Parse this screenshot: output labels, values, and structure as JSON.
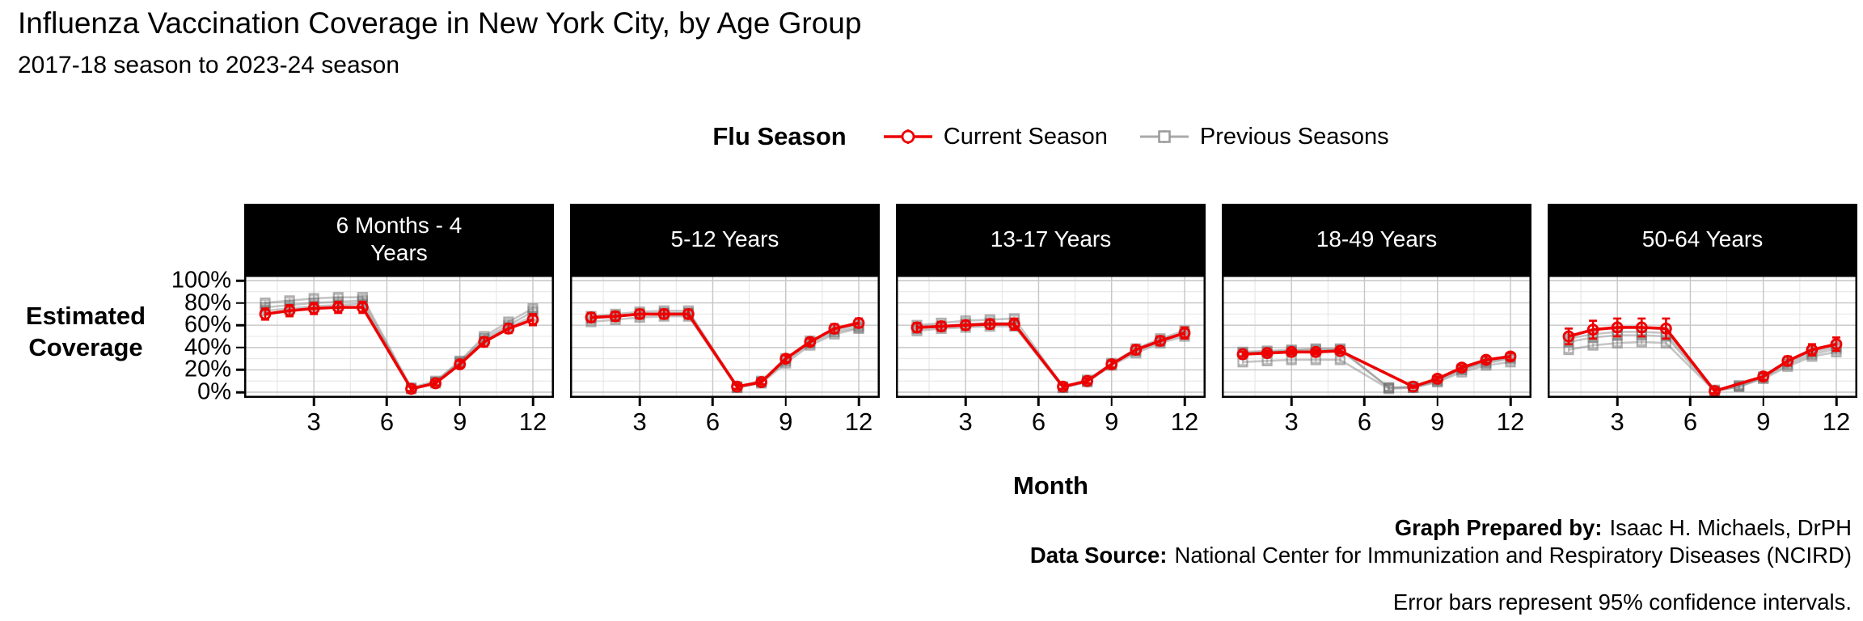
{
  "header": {
    "title": "Influenza Vaccination Coverage in New York City, by Age Group",
    "subtitle": "2017-18 season to 2023-24 season"
  },
  "legend": {
    "title": "Flu Season",
    "items": [
      {
        "label": "Current Season",
        "marker": "circle",
        "color": "#ee0000"
      },
      {
        "label": "Previous Seasons",
        "marker": "square",
        "color": "#8c8c8c"
      }
    ]
  },
  "axes": {
    "y_label": "Estimated\nCoverage",
    "x_label": "Month",
    "y_ticks": [
      {
        "value": 100,
        "label": "100%"
      },
      {
        "value": 80,
        "label": "80%"
      },
      {
        "value": 60,
        "label": "60%"
      },
      {
        "value": 40,
        "label": "40%"
      },
      {
        "value": 20,
        "label": "20%"
      },
      {
        "value": 0,
        "label": "0%"
      }
    ],
    "x_ticks": [
      {
        "value": 3,
        "label": "3"
      },
      {
        "value": 6,
        "label": "6"
      },
      {
        "value": 9,
        "label": "9"
      },
      {
        "value": 12,
        "label": "12"
      }
    ]
  },
  "footer": {
    "prepared_by_label": "Graph Prepared by:",
    "prepared_by": "Isaac H. Michaels, DrPH",
    "source_label": "Data Source:",
    "source": "National Center for Immunization and Respiratory Diseases (NCIRD)",
    "note": "Error bars represent 95% confidence intervals."
  },
  "chart_data": {
    "type": "line",
    "title": "Influenza Vaccination Coverage in New York City, by Age Group",
    "subtitle": "2017-18 season to 2023-24 season",
    "xlabel": "Month",
    "ylabel": "Estimated Coverage",
    "x": [
      1,
      2,
      3,
      4,
      5,
      6,
      7,
      8,
      9,
      10,
      11,
      12
    ],
    "ylim": [
      0,
      100
    ],
    "y_unit": "%",
    "grid": {
      "y_major": [
        0,
        20,
        40,
        60,
        80,
        100
      ],
      "y_minor": [
        10,
        30,
        50,
        70,
        90
      ],
      "x_major": [
        3,
        6,
        9,
        12
      ],
      "x_minor": [
        1.5,
        4.5,
        7.5,
        10.5
      ]
    },
    "colors": {
      "current": "#ee0000",
      "previous": "#8c8c8c"
    },
    "previous_ci": 2.5,
    "facets": [
      {
        "label": "6 Months - 4\nYears",
        "current_season": {
          "values": [
            70,
            73,
            75,
            76,
            76,
            null,
            3,
            8,
            25,
            45,
            57,
            65
          ],
          "ci": [
            5,
            5,
            5,
            5,
            5,
            null,
            2,
            2,
            3,
            4,
            4,
            5
          ]
        },
        "previous_seasons": [
          {
            "values": [
              80,
              82,
              84,
              85,
              85,
              null,
              4,
              10,
              28,
              50,
              63,
              75
            ]
          },
          {
            "values": [
              76,
              78,
              80,
              81,
              82,
              null,
              3,
              9,
              27,
              48,
              60,
              72
            ]
          },
          {
            "values": [
              73,
              75,
              77,
              78,
              79,
              null,
              3,
              8,
              26,
              46,
              58,
              68
            ]
          }
        ]
      },
      {
        "label": "5-12 Years",
        "current_season": {
          "values": [
            67,
            68,
            70,
            70,
            70,
            null,
            5,
            9,
            30,
            45,
            57,
            62
          ],
          "ci": [
            4,
            4,
            4,
            4,
            4,
            null,
            2,
            2,
            3,
            3,
            4,
            4
          ]
        },
        "previous_seasons": [
          {
            "values": [
              68,
              70,
              72,
              73,
              73,
              null,
              5,
              10,
              30,
              46,
              56,
              60
            ]
          },
          {
            "values": [
              66,
              68,
              70,
              71,
              71,
              null,
              4,
              9,
              28,
              44,
              54,
              58
            ]
          },
          {
            "values": [
              63,
              65,
              67,
              68,
              68,
              null,
              4,
              8,
              26,
              42,
              52,
              57
            ]
          }
        ]
      },
      {
        "label": "13-17 Years",
        "current_season": {
          "values": [
            58,
            59,
            60,
            61,
            61,
            null,
            5,
            10,
            25,
            38,
            46,
            53
          ],
          "ci": [
            4,
            4,
            4,
            4,
            5,
            null,
            2,
            2,
            3,
            4,
            4,
            5
          ]
        },
        "previous_seasons": [
          {
            "values": [
              60,
              62,
              64,
              65,
              66,
              null,
              5,
              11,
              26,
              39,
              48,
              55
            ]
          },
          {
            "values": [
              57,
              59,
              61,
              62,
              62,
              null,
              4,
              10,
              25,
              37,
              46,
              52
            ]
          },
          {
            "values": [
              55,
              57,
              58,
              59,
              59,
              null,
              4,
              9,
              24,
              35,
              44,
              50
            ]
          }
        ]
      },
      {
        "label": "18-49 Years",
        "current_season": {
          "values": [
            34,
            35,
            36,
            36,
            37,
            null,
            null,
            5,
            12,
            22,
            29,
            32
          ],
          "ci": [
            2,
            2,
            2,
            2,
            2,
            null,
            null,
            1,
            2,
            2,
            3,
            3
          ]
        },
        "previous_seasons": [
          {
            "values": [
              36,
              37,
              38,
              39,
              39,
              null,
              4,
              5,
              11,
              21,
              27,
              31
            ]
          },
          {
            "values": [
              35,
              36,
              37,
              38,
              38,
              null,
              4,
              4,
              10,
              20,
              26,
              30
            ]
          },
          {
            "values": [
              27,
              28,
              29,
              29,
              29,
              null,
              3,
              4,
              9,
              18,
              24,
              27
            ]
          }
        ]
      },
      {
        "label": "50-64 Years",
        "current_season": {
          "values": [
            50,
            56,
            58,
            58,
            57,
            null,
            1,
            null,
            14,
            28,
            38,
            43
          ],
          "ci": [
            7,
            8,
            8,
            8,
            9,
            null,
            2,
            null,
            3,
            4,
            5,
            6
          ]
        },
        "previous_seasons": [
          {
            "values": [
              48,
              52,
              54,
              54,
              53,
              null,
              2,
              6,
              14,
              27,
              36,
              41
            ]
          },
          {
            "values": [
              45,
              49,
              51,
              51,
              50,
              null,
              1,
              5,
              13,
              25,
              34,
              39
            ]
          },
          {
            "values": [
              38,
              42,
              44,
              45,
              44,
              null,
              1,
              5,
              12,
              23,
              32,
              36
            ]
          }
        ]
      }
    ]
  }
}
